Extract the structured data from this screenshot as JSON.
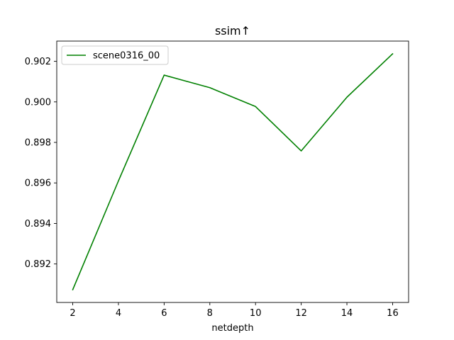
{
  "chart_data": {
    "type": "line",
    "title": "ssim↑",
    "xlabel": "netdepth",
    "ylabel": "",
    "x": [
      2,
      4,
      6,
      8,
      10,
      12,
      14,
      16
    ],
    "xticks": [
      "2",
      "4",
      "6",
      "8",
      "10",
      "12",
      "14",
      "16"
    ],
    "yticks": [
      "0.892",
      "0.894",
      "0.896",
      "0.898",
      "0.900",
      "0.902"
    ],
    "xlim": [
      1.3,
      16.7
    ],
    "ylim": [
      0.8901,
      0.903
    ],
    "grid": false,
    "legend_position": "upper-left",
    "series": [
      {
        "name": "scene0316_00",
        "color": "#008000",
        "values": [
          0.89073,
          0.8961,
          0.90132,
          0.9007,
          0.89977,
          0.89758,
          0.90023,
          0.90237
        ]
      }
    ]
  }
}
